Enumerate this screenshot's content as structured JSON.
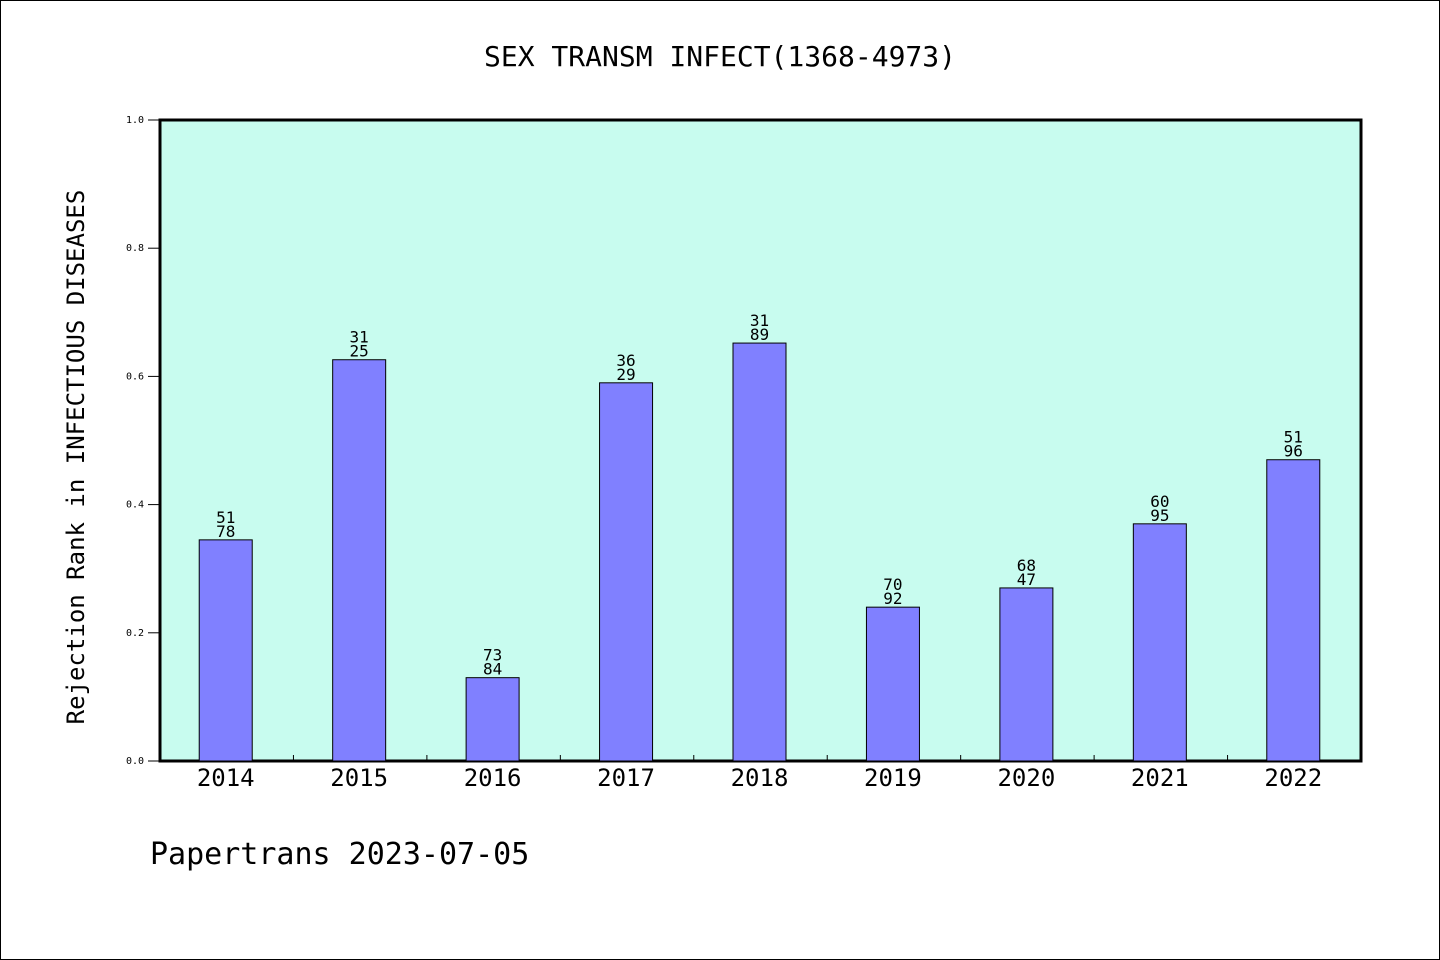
{
  "chart_data": {
    "type": "bar",
    "title": "SEX TRANSM INFECT(1368-4973)",
    "xlabel": "",
    "ylabel": "Rejection Rank in INFECTIOUS DISEASES",
    "categories": [
      "2014",
      "2015",
      "2016",
      "2017",
      "2018",
      "2019",
      "2020",
      "2021",
      "2022"
    ],
    "values": [
      0.345,
      0.626,
      0.13,
      0.59,
      0.652,
      0.24,
      0.27,
      0.37,
      0.47
    ],
    "labels": [
      [
        "51",
        "78"
      ],
      [
        "31",
        "25"
      ],
      [
        "73",
        "84"
      ],
      [
        "36",
        "29"
      ],
      [
        "31",
        "89"
      ],
      [
        "70",
        "92"
      ],
      [
        "68",
        "47"
      ],
      [
        "60",
        "95"
      ],
      [
        "51",
        "96"
      ]
    ],
    "ylim": [
      0.0,
      1.0
    ],
    "yticks": [
      "0.0",
      "0.2",
      "0.4",
      "0.6",
      "0.8",
      "1.0"
    ],
    "grid": false,
    "colors": {
      "plot_background": "#c8fcef",
      "bar_fill": "#8080ff",
      "bar_stroke": "#000000",
      "axis": "#000000"
    }
  },
  "footer": {
    "text": "Papertrans 2023-07-05"
  }
}
